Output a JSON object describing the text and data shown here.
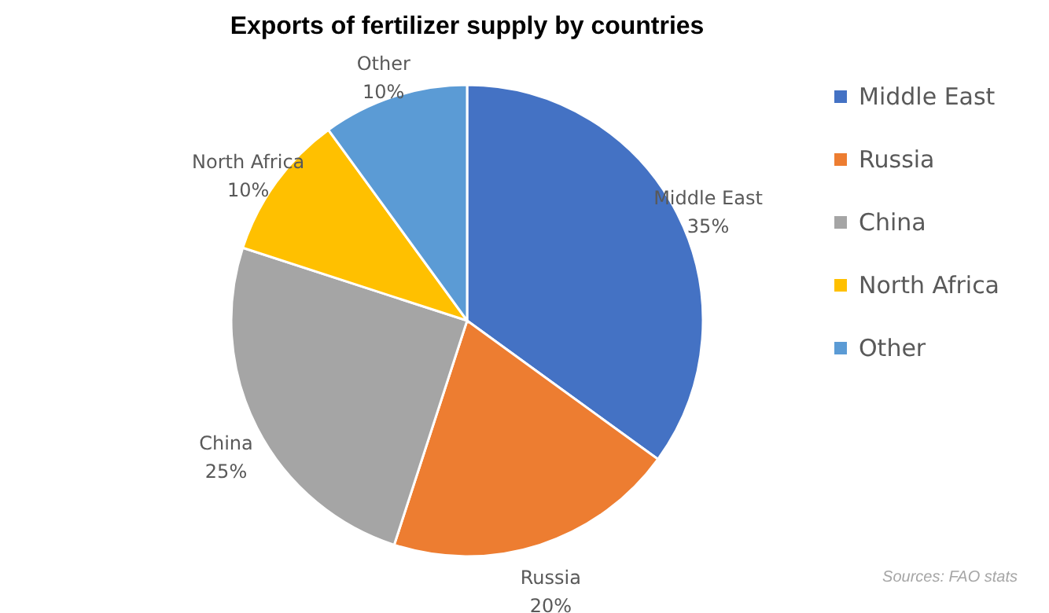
{
  "chart_data": {
    "type": "pie",
    "title": "Exports of fertilizer supply by countries",
    "categories": [
      "Middle East",
      "Russia",
      "China",
      "North Africa",
      "Other"
    ],
    "values": [
      35,
      20,
      25,
      10,
      10
    ],
    "colors": [
      "#4472c4",
      "#ed7d31",
      "#a5a5a5",
      "#ffc000",
      "#5b9bd5"
    ],
    "value_labels": [
      "35%",
      "20%",
      "25%",
      "10%",
      "10%"
    ],
    "legend": "right",
    "annotations": [
      "Sources: FAO stats"
    ]
  }
}
